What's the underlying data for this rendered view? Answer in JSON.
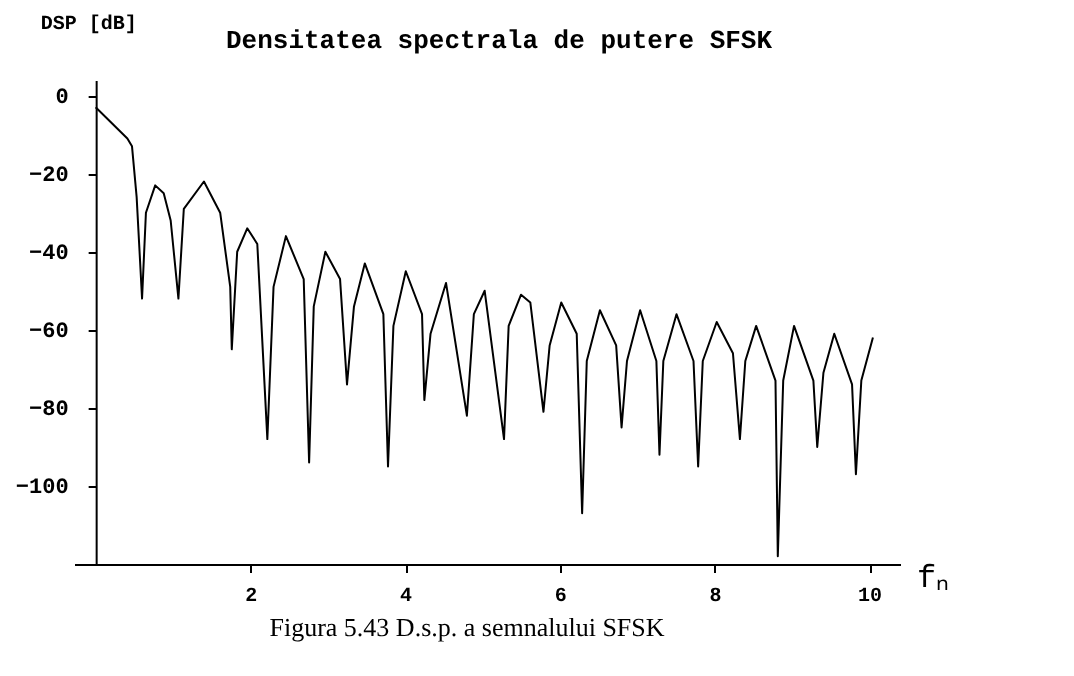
{
  "chart_data": {
    "type": "line",
    "title": "Densitatea spectrala de putere SFSK",
    "ylabel": "DSP [dB]",
    "xlabel": "fₙ",
    "annotations": [
      "Figura 5.43 D.s.p. a semnalului SFSK"
    ],
    "x": [
      0,
      0.41,
      0.47,
      0.53,
      0.6,
      0.65,
      0.77,
      0.88,
      0.97,
      1.07,
      1.14,
      1.4,
      1.61,
      1.74,
      1.76,
      1.83,
      1.96,
      2.09,
      2.22,
      2.3,
      2.46,
      2.69,
      2.76,
      2.82,
      2.97,
      3.16,
      3.25,
      3.34,
      3.48,
      3.72,
      3.78,
      3.85,
      4.01,
      4.22,
      4.25,
      4.33,
      4.53,
      4.8,
      4.89,
      5.03,
      5.28,
      5.34,
      5.5,
      5.62,
      5.79,
      5.87,
      6.02,
      6.22,
      6.29,
      6.35,
      6.52,
      6.73,
      6.8,
      6.87,
      7.04,
      7.25,
      7.29,
      7.34,
      7.51,
      7.73,
      7.79,
      7.85,
      8.03,
      8.24,
      8.33,
      8.4,
      8.54,
      8.79,
      8.82,
      8.89,
      9.03,
      9.28,
      9.33,
      9.41,
      9.55,
      9.78,
      9.83,
      9.9,
      10.05
    ],
    "series": [
      {
        "color": "#000000",
        "values": [
          -3,
          -11,
          -13,
          -26,
          -52,
          -30,
          -23,
          -25,
          -32,
          -52,
          -29,
          -22,
          -30,
          -49,
          -65,
          -40,
          -34,
          -38,
          -88,
          -49,
          -36,
          -47,
          -94,
          -54,
          -40,
          -47,
          -74,
          -54,
          -43,
          -56,
          -95,
          -59,
          -45,
          -56,
          -78,
          -61,
          -48,
          -82,
          -56,
          -50,
          -88,
          -59,
          -51,
          -53,
          -81,
          -64,
          -53,
          -61,
          -107,
          -68,
          -55,
          -64,
          -85,
          -68,
          -55,
          -68,
          -92,
          -68,
          -56,
          -68,
          -95,
          -68,
          -58,
          -66,
          -88,
          -68,
          -59,
          -73,
          -118,
          -73,
          -59,
          -73,
          -90,
          -71,
          -61,
          -74,
          -97,
          -73,
          -62
        ]
      }
    ],
    "xlim": [
      -0.28,
      10.4
    ],
    "ylim": [
      -120,
      4
    ],
    "xticks": [
      2,
      4,
      6,
      8,
      10
    ],
    "yticks": [
      0,
      -20,
      -40,
      -60,
      -80,
      -100
    ],
    "grid": false,
    "marker": "none",
    "line_style": "solid"
  }
}
